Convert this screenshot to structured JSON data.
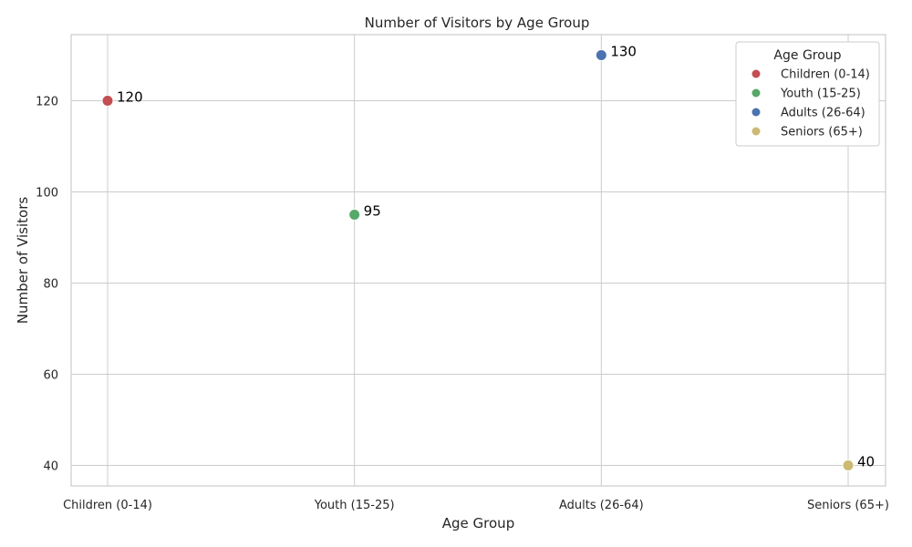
{
  "chart_data": {
    "type": "scatter",
    "title": "Number of Visitors by Age Group",
    "xlabel": "Age Group",
    "ylabel": "Number of Visitors",
    "categories": [
      "Children (0-14)",
      "Youth (15-25)",
      "Adults (26-64)",
      "Seniors (65+)"
    ],
    "series": [
      {
        "name": "Children (0-14)",
        "category": "Children (0-14)",
        "value": 120,
        "color": "#c44e52"
      },
      {
        "name": "Youth (15-25)",
        "category": "Youth (15-25)",
        "value": 95,
        "color": "#55a868"
      },
      {
        "name": "Adults (26-64)",
        "category": "Adults (26-64)",
        "value": 130,
        "color": "#4c72b0"
      },
      {
        "name": "Seniors (65+)",
        "category": "Seniors (65+)",
        "value": 40,
        "color": "#ccb974"
      }
    ],
    "data_labels": [
      "120",
      "95",
      "130",
      "40"
    ],
    "ylim": [
      35.5,
      134.5
    ],
    "yticks": [
      40,
      60,
      80,
      100,
      120
    ],
    "grid": true,
    "legend": {
      "title": "Age Group",
      "position": "top-right"
    }
  }
}
